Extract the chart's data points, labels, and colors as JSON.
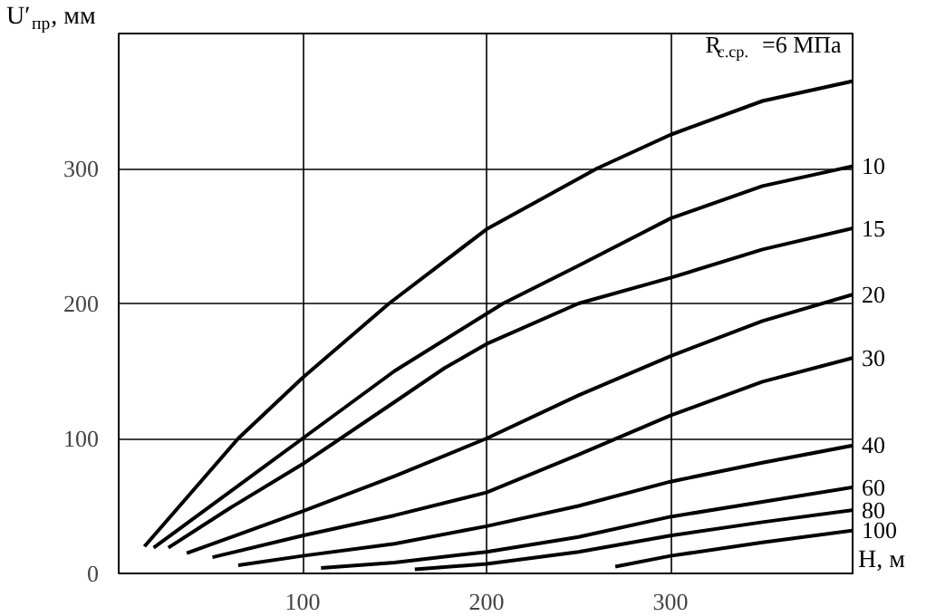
{
  "chart_data": {
    "type": "line",
    "xlabel": "H, м",
    "ylabel": "U′$_{пр}$, мм",
    "xlim": [
      0,
      400
    ],
    "ylim": [
      0,
      400
    ],
    "xticks": [
      100,
      200,
      300
    ],
    "yticks": [
      0,
      100,
      200,
      300
    ],
    "grid": true,
    "line_style": "solid",
    "marker": "none",
    "series": [
      {
        "name": "R$_{с.ср.}$=6 МПа",
        "color": "#000000",
        "x": [
          14,
          65,
          100,
          147,
          200,
          260,
          300,
          350,
          400
        ],
        "values": [
          20,
          100,
          145,
          200,
          255,
          300,
          325,
          350,
          365
        ]
      },
      {
        "name": "10",
        "color": "#000000",
        "x": [
          19,
          60,
          100,
          150,
          209,
          250,
          300,
          350,
          400
        ],
        "values": [
          19,
          60,
          100,
          150,
          200,
          228,
          263,
          287,
          302
        ]
      },
      {
        "name": "15",
        "color": "#000000",
        "x": [
          27,
          60,
          100,
          150,
          177,
          200,
          250,
          300,
          350,
          400
        ],
        "values": [
          19,
          48,
          81,
          127,
          152,
          170,
          200,
          219,
          240,
          256
        ]
      },
      {
        "name": "20",
        "color": "#000000",
        "x": [
          37,
          100,
          150,
          200,
          250,
          300,
          350,
          400
        ],
        "values": [
          15,
          46,
          72,
          100,
          132,
          161,
          187,
          207
        ]
      },
      {
        "name": "30",
        "color": "#000000",
        "x": [
          51,
          100,
          150,
          200,
          250,
          300,
          350,
          400
        ],
        "values": [
          12,
          28,
          43,
          60,
          88,
          117,
          142,
          160
        ]
      },
      {
        "name": "40",
        "color": "#000000",
        "x": [
          65,
          100,
          150,
          200,
          250,
          300,
          350,
          400
        ],
        "values": [
          6,
          13,
          22,
          35,
          50,
          68,
          82,
          95
        ]
      },
      {
        "name": "60",
        "color": "#000000",
        "x": [
          110,
          150,
          200,
          250,
          300,
          350,
          400
        ],
        "values": [
          4,
          8,
          16,
          27,
          42,
          53,
          64
        ]
      },
      {
        "name": "80",
        "color": "#000000",
        "x": [
          161,
          200,
          250,
          300,
          350,
          400
        ],
        "values": [
          3,
          7,
          16,
          28,
          38,
          47
        ]
      },
      {
        "name": "100",
        "color": "#000000",
        "x": [
          270,
          300,
          350,
          400
        ],
        "values": [
          5,
          13,
          23,
          32
        ]
      }
    ]
  }
}
